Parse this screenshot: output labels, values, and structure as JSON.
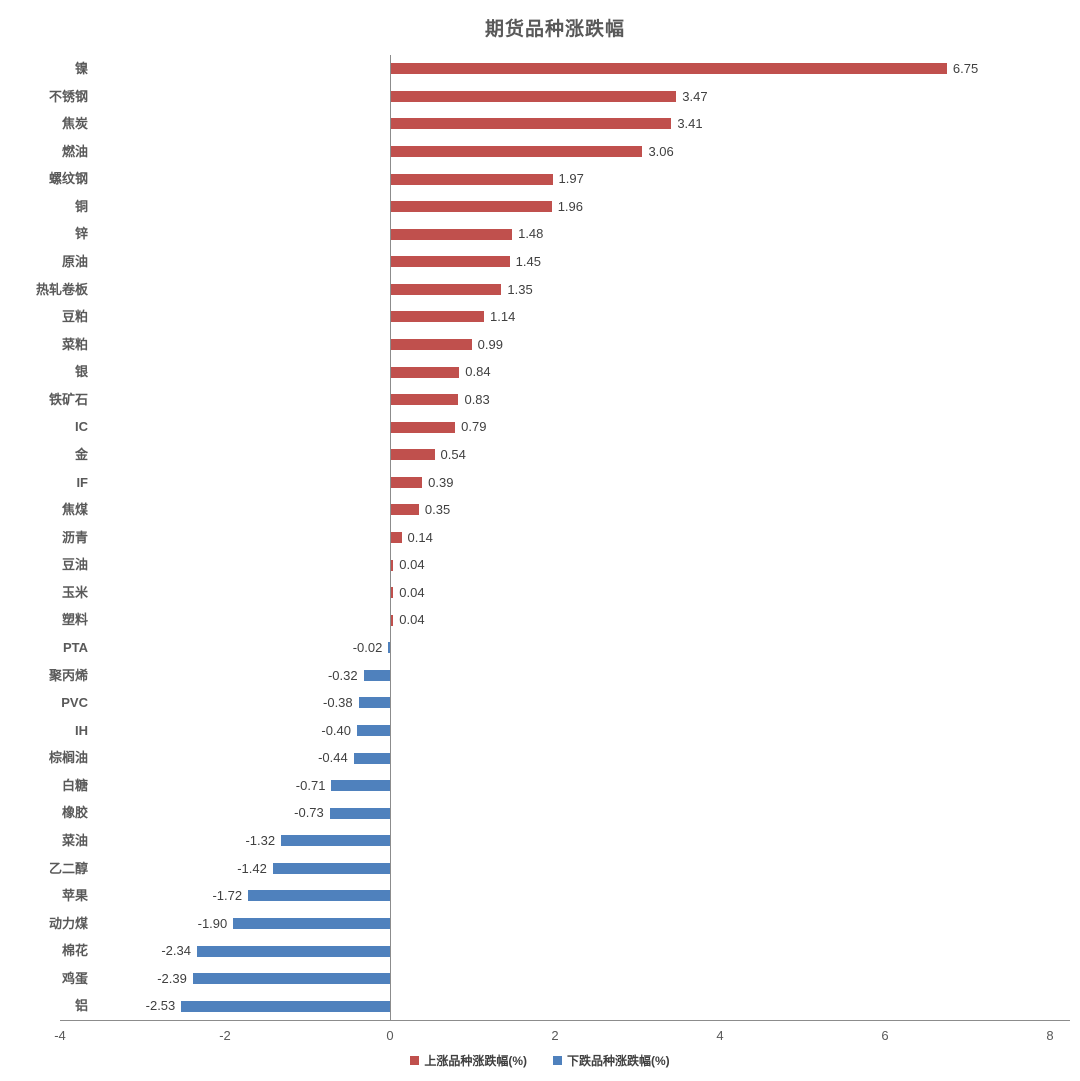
{
  "title": "期货品种涨跌幅",
  "colors": {
    "up": "#c0504d",
    "down": "#4f81bd",
    "axis_line": "#8c8c8c",
    "title_text": "#595959",
    "category_text": "#595959",
    "value_text": "#404040",
    "tick_text": "#595959"
  },
  "x_axis": {
    "min": -4,
    "max": 8,
    "ticks": [
      -4,
      -2,
      0,
      2,
      4,
      6,
      8
    ]
  },
  "legend": [
    {
      "label": "上涨品种涨跌幅(%)",
      "color": "#c0504d"
    },
    {
      "label": "下跌品种涨跌幅(%)",
      "color": "#4f81bd"
    }
  ],
  "chart_data": {
    "type": "bar",
    "orientation": "horizontal",
    "title": "期货品种涨跌幅",
    "xlabel": "",
    "ylabel": "",
    "xlim": [
      -4,
      8
    ],
    "grid": false,
    "legend_position": "bottom",
    "categories": [
      "镍",
      "不锈钢",
      "焦炭",
      "燃油",
      "螺纹钢",
      "铜",
      "锌",
      "原油",
      "热轧卷板",
      "豆粕",
      "菜粕",
      "银",
      "铁矿石",
      "IC",
      "金",
      "IF",
      "焦煤",
      "沥青",
      "豆油",
      "玉米",
      "塑料",
      "PTA",
      "聚丙烯",
      "PVC",
      "IH",
      "棕榈油",
      "白糖",
      "橡胶",
      "菜油",
      "乙二醇",
      "苹果",
      "动力煤",
      "棉花",
      "鸡蛋",
      "铝"
    ],
    "values": [
      6.75,
      3.47,
      3.41,
      3.06,
      1.97,
      1.96,
      1.48,
      1.45,
      1.35,
      1.14,
      0.99,
      0.84,
      0.83,
      0.79,
      0.54,
      0.39,
      0.35,
      0.14,
      0.04,
      0.04,
      0.04,
      -0.02,
      -0.32,
      -0.38,
      -0.4,
      -0.44,
      -0.71,
      -0.73,
      -1.32,
      -1.42,
      -1.72,
      -1.9,
      -2.34,
      -2.39,
      -2.53
    ],
    "series": [
      {
        "name": "上涨品种涨跌幅(%)",
        "color": "#c0504d",
        "applies_to": "values >= 0"
      },
      {
        "name": "下跌品种涨跌幅(%)",
        "color": "#4f81bd",
        "applies_to": "values < 0"
      }
    ]
  }
}
